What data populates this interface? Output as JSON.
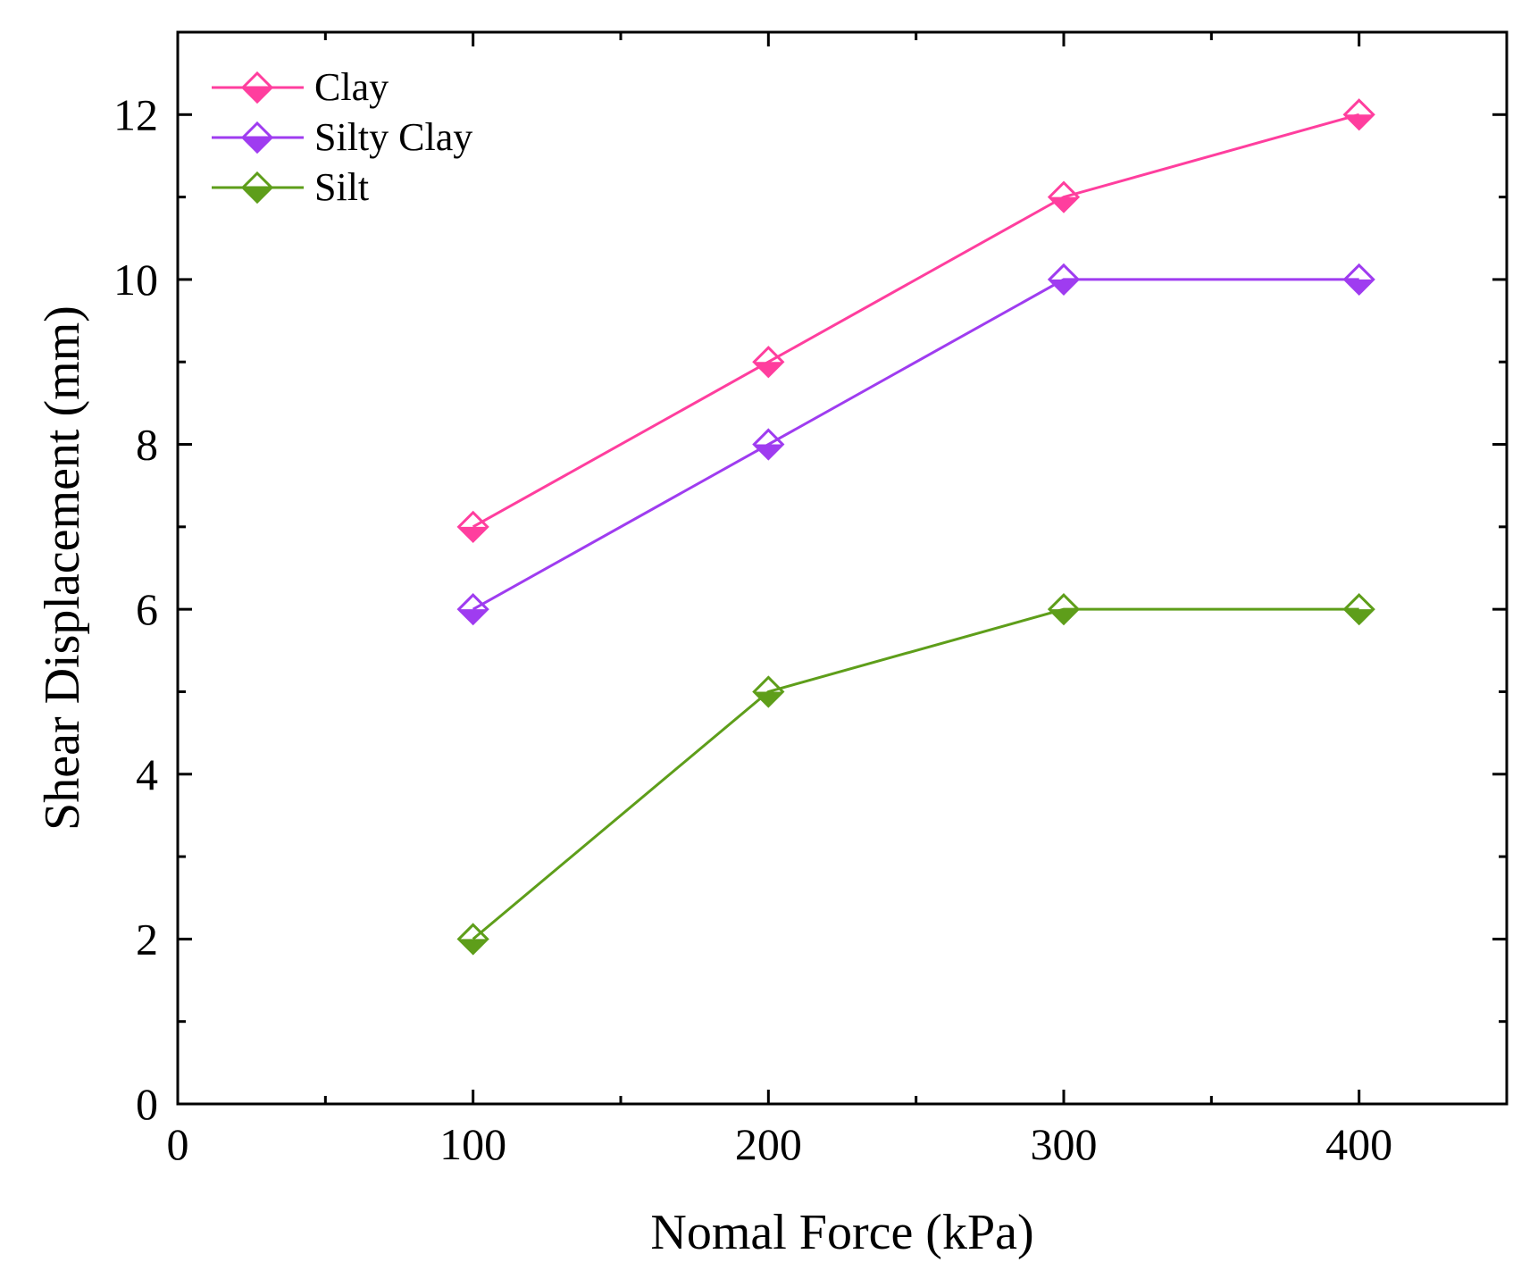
{
  "chart_data": {
    "type": "line",
    "title": "",
    "xlabel": "Nomal Force (kPa)",
    "ylabel": "Shear Displacement (mm)",
    "xlim": [
      0,
      450
    ],
    "ylim": [
      0,
      13
    ],
    "xticks": [
      0,
      100,
      200,
      300,
      400
    ],
    "yticks": [
      0,
      2,
      4,
      6,
      8,
      10,
      12
    ],
    "x_minor_step": 50,
    "y_minor_step": 1,
    "grid": false,
    "legend_position": "top-left",
    "marker": "half-filled-diamond",
    "x": [
      100,
      200,
      300,
      400
    ],
    "series": [
      {
        "name": "Clay",
        "color": "#ff3e9e",
        "values": [
          7,
          9,
          11,
          12
        ]
      },
      {
        "name": "Silty Clay",
        "color": "#9f3cf0",
        "values": [
          6,
          8,
          10,
          10
        ]
      },
      {
        "name": "Silt",
        "color": "#5e9e1a",
        "values": [
          2,
          5,
          6,
          6
        ]
      }
    ]
  }
}
